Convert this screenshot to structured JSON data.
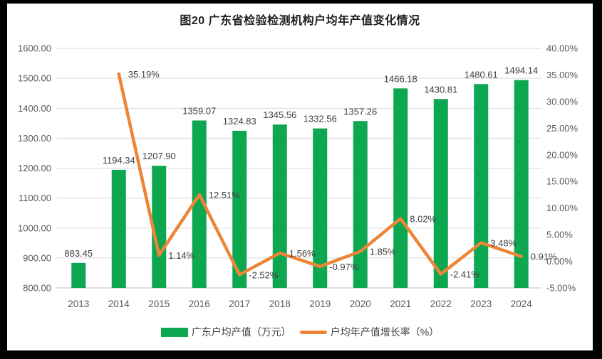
{
  "frame": {
    "border_color": "#000000",
    "panel_background": "#ffffff"
  },
  "chart_data": {
    "type": "combo-bar-line",
    "title": "图20 广东省检验检测机构户均年产值变化情况",
    "categories": [
      "2013",
      "2014",
      "2015",
      "2016",
      "2017",
      "2018",
      "2019",
      "2020",
      "2021",
      "2022",
      "2023",
      "2024"
    ],
    "series": [
      {
        "name": "广东户均产值（万元）",
        "type": "bar",
        "axis": "left",
        "color": "#0CA750",
        "values": [
          883.45,
          1194.34,
          1207.9,
          1359.07,
          1324.83,
          1345.56,
          1332.56,
          1357.26,
          1466.18,
          1430.81,
          1480.61,
          1494.14
        ],
        "labels": [
          "883.45",
          "1194.34",
          "1207.90",
          "1359.07",
          "1324.83",
          "1345.56",
          "1332.56",
          "1357.26",
          "1466.18",
          "1430.81",
          "1480.61",
          "1494.14"
        ]
      },
      {
        "name": "户均年产值增长率（%）",
        "type": "line",
        "axis": "right",
        "color": "#ED8537",
        "values": [
          null,
          35.19,
          1.14,
          12.51,
          -2.52,
          1.56,
          -0.97,
          1.85,
          8.02,
          -2.41,
          3.48,
          0.91
        ],
        "labels": [
          null,
          "35.19%",
          "1.14%",
          "12.51%",
          "-2.52%",
          "1.56%",
          "-0.97%",
          "1.85%",
          "8.02%",
          "-2.41%",
          "3.48%",
          "0.91%"
        ]
      }
    ],
    "left_axis": {
      "min": 800,
      "max": 1600,
      "step": 100,
      "tick_labels": [
        "1600.00",
        "1500.00",
        "1400.00",
        "1300.00",
        "1200.00",
        "1100.00",
        "1000.00",
        "900.00",
        "800.00"
      ]
    },
    "right_axis": {
      "min": -5,
      "max": 40,
      "step": 5,
      "tick_labels": [
        "40.00%",
        "35.00%",
        "30.00%",
        "25.00%",
        "20.00%",
        "15.00%",
        "10.00%",
        "5.00%",
        "0.00%",
        "-5.00%"
      ]
    },
    "grid": true,
    "legend_position": "bottom",
    "colors": {
      "gridline": "#D9D9D9",
      "axis_line": "#BFBFBF",
      "tick_label": "#595959",
      "data_label": "#3F3F3F"
    }
  }
}
